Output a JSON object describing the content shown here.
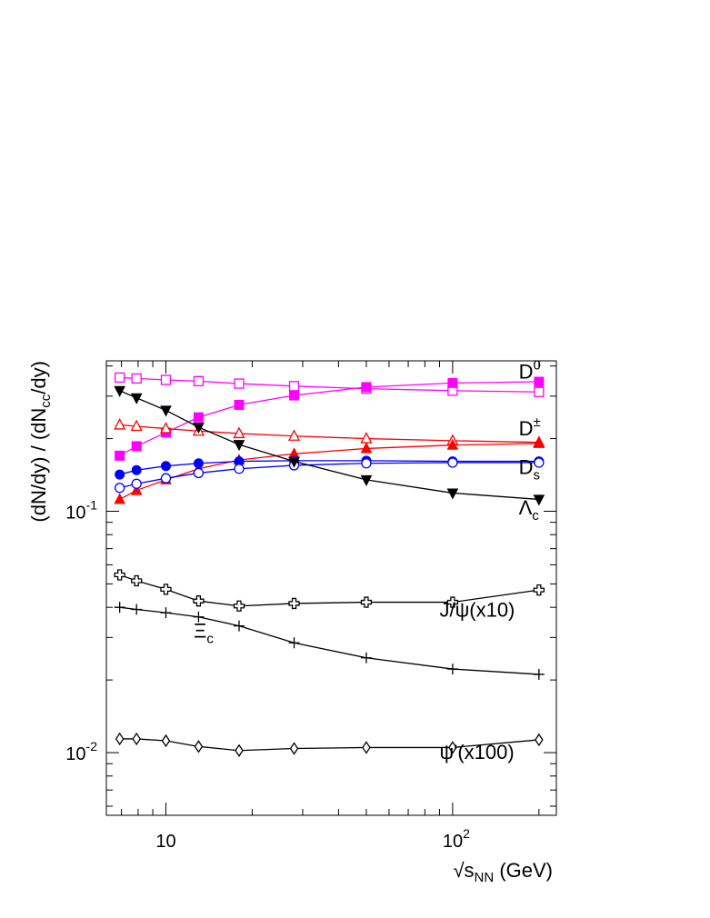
{
  "chart_data": {
    "type": "line",
    "x_scale": "log",
    "y_scale": "log",
    "xlim": [
      6.2,
      230
    ],
    "ylim": [
      0.0055,
      0.42
    ],
    "grid": false,
    "x_ticks": [
      {
        "value": 10,
        "base": "10",
        "exp": ""
      },
      {
        "value": 100,
        "base": "10",
        "exp": "2"
      }
    ],
    "y_ticks": [
      {
        "value": 0.01,
        "base": "10",
        "exp": "-2"
      },
      {
        "value": 0.1,
        "base": "10",
        "exp": "-1"
      }
    ],
    "xlabel": {
      "prefix": "√s",
      "sub": "NN",
      "suffix": " (GeV)"
    },
    "ylabel": {
      "part1": "(dN/dy) / (dN",
      "sub": "cc",
      "part2": "/dy)"
    },
    "x": [
      6.9,
      7.9,
      10,
      13,
      18,
      28,
      50,
      100,
      200
    ],
    "series": [
      {
        "name": "D0",
        "color": "#ff00ff",
        "marker": "square-open",
        "values": [
          0.358,
          0.355,
          0.35,
          0.346,
          0.338,
          0.33,
          0.322,
          0.316,
          0.312
        ]
      },
      {
        "name": "D0",
        "color": "#ff00ff",
        "marker": "square-filled",
        "values": [
          0.17,
          0.186,
          0.212,
          0.245,
          0.276,
          0.302,
          0.327,
          0.34,
          0.344
        ]
      },
      {
        "name": "D±",
        "color": "#ff0000",
        "marker": "triangle-open",
        "values": [
          0.228,
          0.225,
          0.22,
          0.215,
          0.21,
          0.205,
          0.2,
          0.196,
          0.193
        ]
      },
      {
        "name": "D±",
        "color": "#ff0000",
        "marker": "triangle-filled",
        "values": [
          0.112,
          0.122,
          0.135,
          0.15,
          0.163,
          0.173,
          0.182,
          0.188,
          0.191
        ]
      },
      {
        "name": "Ds",
        "color": "#0000ff",
        "marker": "circle-filled",
        "values": [
          0.142,
          0.148,
          0.154,
          0.158,
          0.161,
          0.162,
          0.162,
          0.161,
          0.161
        ]
      },
      {
        "name": "Ds",
        "color": "#0000ff",
        "marker": "circle-open",
        "values": [
          0.125,
          0.13,
          0.137,
          0.144,
          0.15,
          0.155,
          0.158,
          0.159,
          0.159
        ]
      },
      {
        "name": "Λc",
        "color": "#000000",
        "marker": "triangle-down-filled",
        "values": [
          0.316,
          0.295,
          0.262,
          0.223,
          0.189,
          0.161,
          0.135,
          0.119,
          0.112
        ]
      },
      {
        "name": "J/ψ(x10)",
        "color": "#000000",
        "marker": "cross-open",
        "values": [
          0.0545,
          0.0515,
          0.0475,
          0.0425,
          0.0405,
          0.0415,
          0.042,
          0.042,
          0.0472
        ]
      },
      {
        "name": "Ξc",
        "color": "#000000",
        "marker": "plus",
        "values": [
          0.04,
          0.0392,
          0.038,
          0.0365,
          0.0335,
          0.0285,
          0.0247,
          0.0222,
          0.0211
        ]
      },
      {
        "name": "ψ'(x100)",
        "color": "#000000",
        "marker": "diamond-open",
        "values": [
          0.0114,
          0.0114,
          0.0112,
          0.0106,
          0.0102,
          0.0104,
          0.0105,
          0.0105,
          0.0113
        ]
      }
    ],
    "annotations": [
      {
        "id": "d0",
        "base": "D",
        "sup": "0",
        "sub": "",
        "x": 170,
        "y": 0.355
      },
      {
        "id": "dpm",
        "base": "D",
        "sup": "±",
        "sub": "",
        "x": 170,
        "y": 0.206
      },
      {
        "id": "ds",
        "base": "D",
        "sup": "",
        "sub": "s",
        "x": 170,
        "y": 0.143
      },
      {
        "id": "lc",
        "base": "Λ",
        "sup": "",
        "sub": "c",
        "x": 170,
        "y": 0.097
      },
      {
        "id": "jpsi",
        "base": "J/ψ(x10)",
        "sup": "",
        "sub": "",
        "x": 90,
        "y": 0.0365
      },
      {
        "id": "xic",
        "base": "Ξ",
        "sup": "",
        "sub": "c",
        "x": 12.5,
        "y": 0.03
      },
      {
        "id": "psip",
        "base": "ψ'(x100)",
        "sup": "",
        "sub": "",
        "x": 90,
        "y": 0.0094
      }
    ]
  }
}
